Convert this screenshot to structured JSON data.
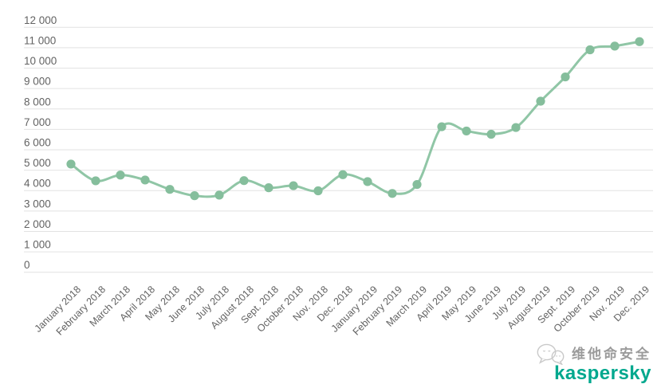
{
  "chart_data": {
    "type": "line",
    "title": "",
    "xlabel": "",
    "ylabel": "",
    "categories": [
      "January 2018",
      "February 2018",
      "March 2018",
      "April 2018",
      "May 2018",
      "June 2018",
      "July 2018",
      "August 2018",
      "Sept. 2018",
      "October 2018",
      "Nov. 2018",
      "Dec. 2018",
      "January 2019",
      "February 2019",
      "March 2019",
      "April 2019",
      "May 2019",
      "June 2019",
      "July 2019",
      "August 2019",
      "Sept. 2019",
      "October 2019",
      "Nov. 2019",
      "Dec. 2019"
    ],
    "values": [
      5300,
      4480,
      4760,
      4520,
      4060,
      3750,
      3780,
      4490,
      4140,
      4240,
      3990,
      4780,
      4440,
      3860,
      4300,
      7130,
      6920,
      6760,
      7090,
      8380,
      9570,
      10900,
      11080,
      11300
    ],
    "ylim": [
      0,
      12000
    ],
    "ytick_step": 1000,
    "ytick_labels": [
      "0",
      "1 000",
      "2 000",
      "3 000",
      "4 000",
      "5 000",
      "6 000",
      "7 000",
      "8 000",
      "9 000",
      "10 000",
      "11 000",
      "12 000"
    ],
    "grid": true,
    "legend": "none",
    "line_color": "#90c6a6",
    "point_color": "#85be9c",
    "gridline_color": "#e2e2e2",
    "axis_label_color": "#636363"
  },
  "footer": {
    "chinese_label": "维他命安全",
    "brand": "kaspersky",
    "brand_color": "#00a88e",
    "icon": "chat-bubbles-icon",
    "icon_color": "#c9c9c9"
  }
}
